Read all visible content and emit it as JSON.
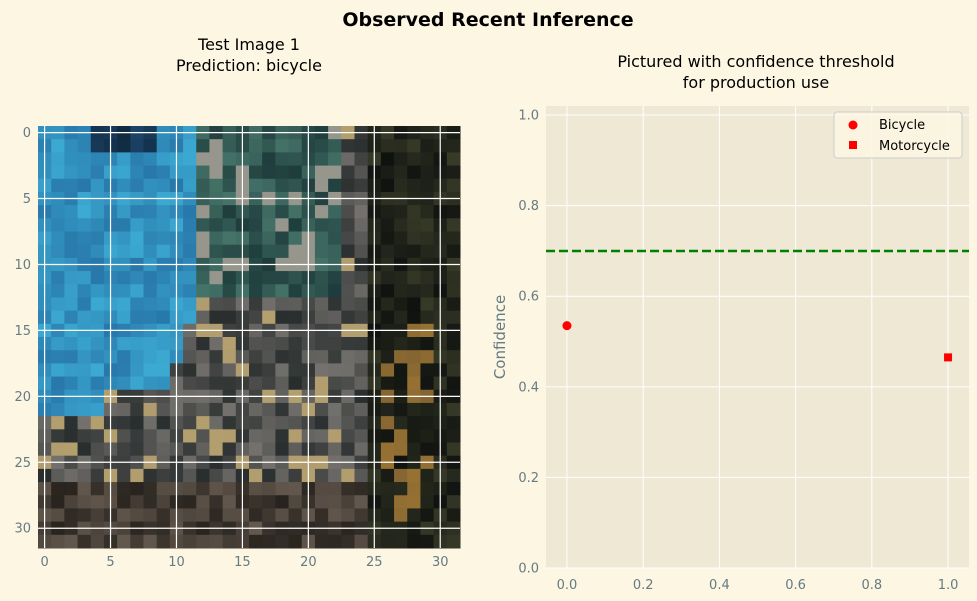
{
  "figure": {
    "suptitle": "Observed Recent Inference"
  },
  "image_panel": {
    "title_line1": "Test Image 1",
    "title_line2": "Prediction: bicycle",
    "grid_size": 32,
    "x_ticks": [
      "0",
      "5",
      "10",
      "15",
      "20",
      "25",
      "30"
    ],
    "y_ticks": [
      "0",
      "5",
      "10",
      "15",
      "20",
      "25",
      "30"
    ],
    "tick_values": [
      0,
      5,
      10,
      15,
      20,
      25,
      30
    ]
  },
  "chart_data": {
    "type": "scatter",
    "title_line1": "Pictured with confidence threshold",
    "title_line2": "for production use",
    "xlabel": "",
    "ylabel": "Confidence",
    "xlim": [
      -0.055,
      1.055
    ],
    "ylim": [
      0.0,
      1.02
    ],
    "x_ticks": [
      0.0,
      0.2,
      0.4,
      0.6,
      0.8,
      1.0
    ],
    "x_tick_labels": [
      "0.0",
      "0.2",
      "0.4",
      "0.6",
      "0.8",
      "1.0"
    ],
    "y_ticks": [
      0.0,
      0.2,
      0.4,
      0.6,
      0.8,
      1.0
    ],
    "y_tick_labels": [
      "0.0",
      "0.2",
      "0.4",
      "0.6",
      "0.8",
      "1.0"
    ],
    "grid": true,
    "legend_position": "top-right",
    "series": [
      {
        "name": "Bicycle",
        "marker": "circle",
        "color": "#ff0000",
        "points": [
          {
            "x": 0.0,
            "y": 0.535
          }
        ]
      },
      {
        "name": "Motorcycle",
        "marker": "square",
        "color": "#ff0000",
        "points": [
          {
            "x": 1.0,
            "y": 0.465
          }
        ]
      }
    ],
    "threshold": {
      "y": 0.7,
      "color": "#008000",
      "style": "dashed"
    }
  },
  "colors": {
    "background": "#fdf6e3",
    "axes_background": "#eee8d5",
    "grid": "#ffffff",
    "tick_text": "#657b83"
  }
}
